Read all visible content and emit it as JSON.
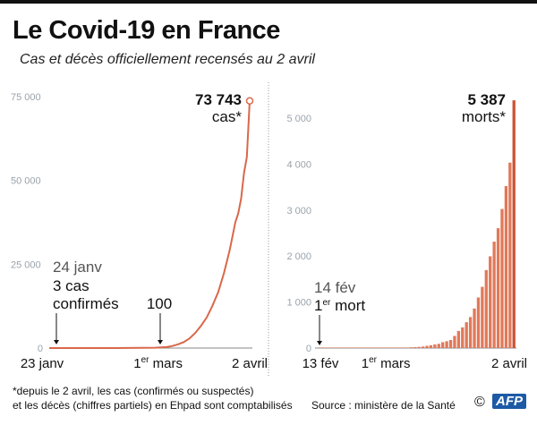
{
  "title": "Le Covid-19 en France",
  "subtitle": "Cas et décès officiellement recensés au 2 avril",
  "footnote_line1": "*depuis le 2 avril, les cas (confirmés ou suspectés)",
  "footnote_line2": "et les décès (chiffres partiels) en Ehpad sont comptabilisés",
  "source": "Source : ministère de la Santé",
  "copyright": "©",
  "logo": "AFP",
  "colors": {
    "series": "#d9684a",
    "bars": "#e0795a",
    "axis_ticks": "#9aa3ab"
  },
  "chart_data": [
    {
      "type": "line",
      "ylim": [
        0,
        75000
      ],
      "yticks": [
        "0",
        "25 000",
        "50 000",
        "75 000"
      ],
      "xticks": [
        "23 janv",
        "1er mars",
        "2 avril"
      ],
      "x_range": [
        "2020-01-23",
        "2020-04-02"
      ],
      "annotations": {
        "start_date": "24 janv",
        "start_text1": "3 cas",
        "start_text2": "confirmés",
        "mid_value": "100",
        "end_value": "73 743",
        "end_label": "cas*"
      },
      "points": [
        [
          "2020-01-23",
          0
        ],
        [
          "2020-01-24",
          3
        ],
        [
          "2020-02-01",
          6
        ],
        [
          "2020-02-15",
          12
        ],
        [
          "2020-02-29",
          100
        ],
        [
          "2020-03-02",
          191
        ],
        [
          "2020-03-04",
          285
        ],
        [
          "2020-03-06",
          613
        ],
        [
          "2020-03-08",
          1126
        ],
        [
          "2020-03-10",
          1784
        ],
        [
          "2020-03-12",
          2876
        ],
        [
          "2020-03-14",
          4499
        ],
        [
          "2020-03-16",
          6633
        ],
        [
          "2020-03-18",
          9134
        ],
        [
          "2020-03-20",
          12612
        ],
        [
          "2020-03-22",
          16689
        ],
        [
          "2020-03-24",
          22302
        ],
        [
          "2020-03-26",
          29155
        ],
        [
          "2020-03-28",
          37575
        ],
        [
          "2020-03-29",
          40174
        ],
        [
          "2020-03-30",
          44550
        ],
        [
          "2020-03-31",
          52128
        ],
        [
          "2020-04-01",
          56989
        ],
        [
          "2020-04-02",
          73743
        ]
      ]
    },
    {
      "type": "bar",
      "ylim": [
        0,
        5400
      ],
      "yticks": [
        "0",
        "1 000",
        "2 000",
        "3 000",
        "4 000",
        "5 000"
      ],
      "xticks": [
        "13 fév",
        "1er mars",
        "2 avril"
      ],
      "x_range": [
        "2020-02-13",
        "2020-04-02"
      ],
      "annotations": {
        "start_date": "14 fév",
        "start_text": "1er mort",
        "end_value": "5 387",
        "end_label": "morts*"
      },
      "values": [
        0,
        1,
        1,
        1,
        1,
        1,
        1,
        1,
        1,
        1,
        1,
        1,
        1,
        2,
        2,
        2,
        2,
        2,
        3,
        4,
        4,
        6,
        9,
        16,
        19,
        25,
        33,
        48,
        61,
        79,
        91,
        127,
        148,
        175,
        264,
        372,
        450,
        562,
        674,
        860,
        1100,
        1331,
        1696,
        1995,
        2314,
        2606,
        3024,
        3523,
        4032,
        5387
      ]
    }
  ]
}
